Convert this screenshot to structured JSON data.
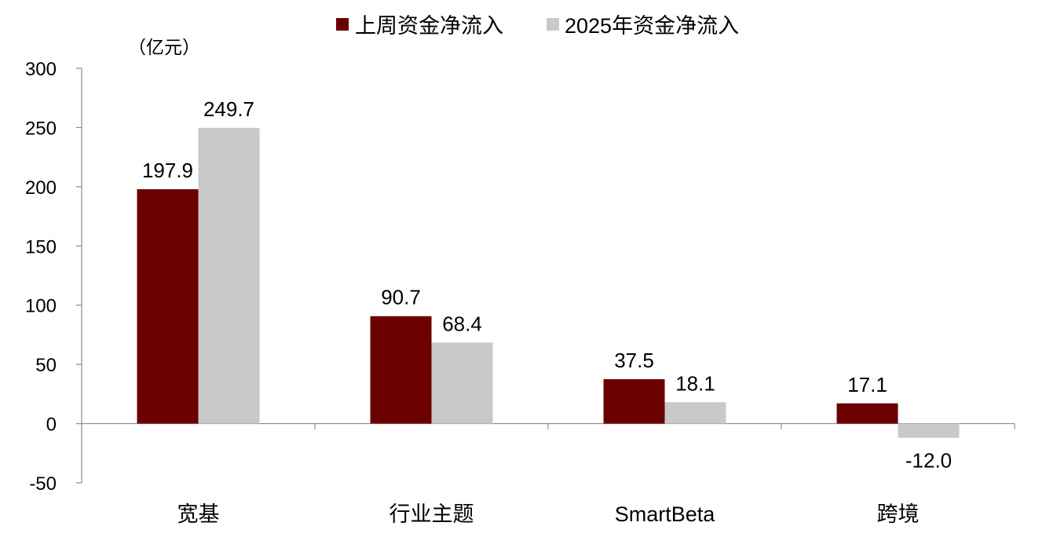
{
  "chart_data": {
    "type": "bar",
    "unit": "（亿元）",
    "categories": [
      "宽基",
      "行业主题",
      "SmartBeta",
      "跨境"
    ],
    "series": [
      {
        "name": "上周资金净流入",
        "color": "#6b0000",
        "values": [
          197.9,
          90.7,
          37.5,
          17.1
        ],
        "labels": [
          "197.9",
          "90.7",
          "37.5",
          "17.1"
        ]
      },
      {
        "name": "2025年资金净流入",
        "color": "#c9c9c9",
        "values": [
          249.7,
          68.4,
          18.1,
          -12.0
        ],
        "labels": [
          "249.7",
          "68.4",
          "18.1",
          "-12.0"
        ]
      }
    ],
    "ylim": [
      -50,
      300
    ],
    "yticks": [
      "300",
      "250",
      "200",
      "150",
      "100",
      "50",
      "0",
      "-50"
    ],
    "ytick_values": [
      300,
      250,
      200,
      150,
      100,
      50,
      0,
      -50
    ],
    "legend_position": "top-center",
    "grid": false
  }
}
